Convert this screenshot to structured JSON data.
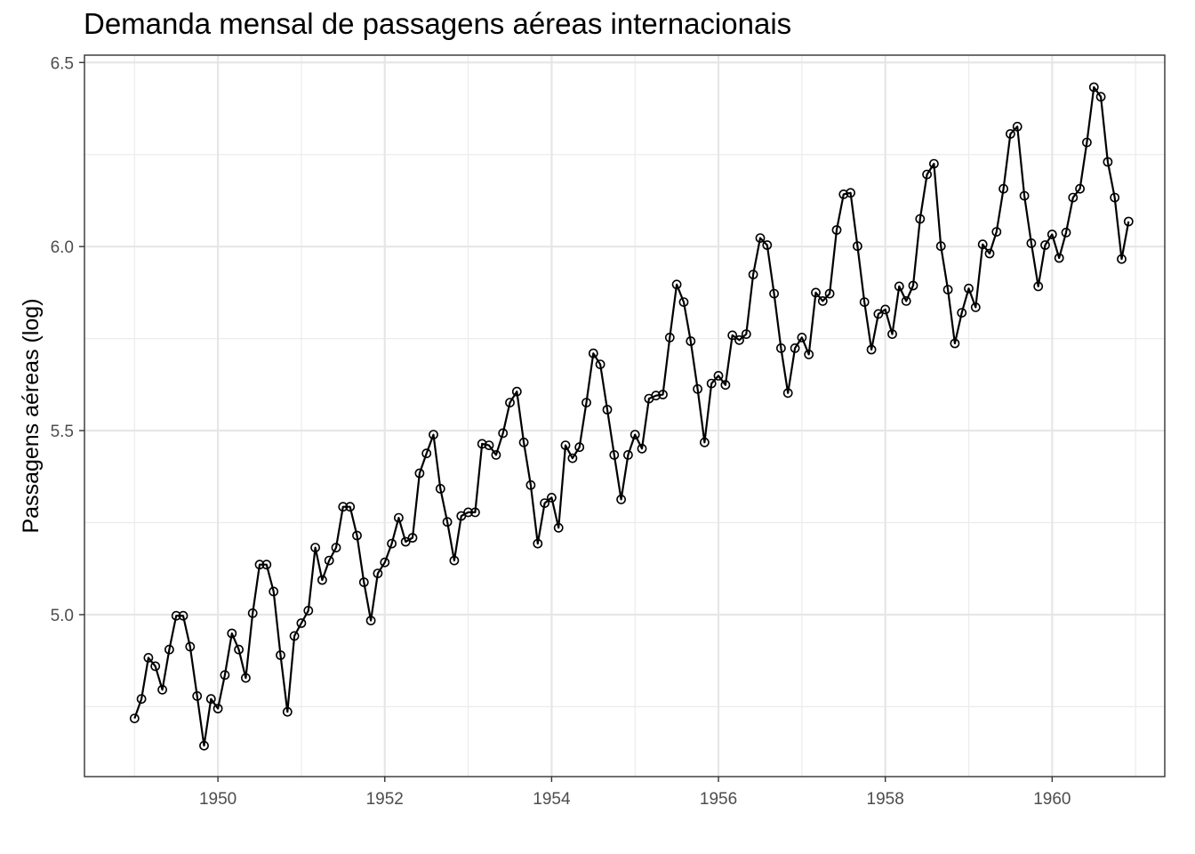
{
  "chart_data": {
    "type": "line",
    "title": "Demanda mensal de passagens aéreas internacionais",
    "xlabel": "",
    "ylabel": "Passagens aéreas (log)",
    "x_start": 1949.0,
    "x_step": 0.0833333,
    "xlim": [
      1948.4,
      1961.35
    ],
    "ylim": [
      4.56,
      6.52
    ],
    "x_ticks": [
      1950,
      1952,
      1954,
      1956,
      1958,
      1960
    ],
    "x_tick_labels": [
      "1950",
      "1952",
      "1954",
      "1956",
      "1958",
      "1960"
    ],
    "y_ticks": [
      5.0,
      5.5,
      6.0,
      6.5
    ],
    "y_tick_labels": [
      "5.0",
      "5.5",
      "6.0",
      "6.5"
    ],
    "grid": true,
    "legend": "none",
    "line_color": "#000000",
    "series": [
      {
        "values": [
          4.718,
          4.771,
          4.883,
          4.86,
          4.796,
          4.905,
          4.997,
          4.997,
          4.913,
          4.779,
          4.644,
          4.771,
          4.745,
          4.836,
          4.949,
          4.905,
          4.828,
          5.004,
          5.136,
          5.136,
          5.063,
          4.89,
          4.736,
          4.942,
          4.977,
          5.011,
          5.182,
          5.094,
          5.147,
          5.182,
          5.293,
          5.293,
          5.215,
          5.088,
          4.984,
          5.112,
          5.142,
          5.193,
          5.263,
          5.198,
          5.209,
          5.384,
          5.438,
          5.489,
          5.342,
          5.252,
          5.147,
          5.268,
          5.278,
          5.278,
          5.464,
          5.46,
          5.434,
          5.493,
          5.576,
          5.606,
          5.468,
          5.352,
          5.193,
          5.303,
          5.318,
          5.236,
          5.46,
          5.425,
          5.455,
          5.576,
          5.71,
          5.68,
          5.557,
          5.434,
          5.313,
          5.434,
          5.489,
          5.451,
          5.587,
          5.595,
          5.598,
          5.753,
          5.897,
          5.849,
          5.743,
          5.613,
          5.468,
          5.628,
          5.649,
          5.624,
          5.759,
          5.746,
          5.762,
          5.924,
          6.023,
          6.004,
          5.872,
          5.724,
          5.602,
          5.724,
          5.753,
          5.707,
          5.875,
          5.852,
          5.872,
          6.045,
          6.142,
          6.146,
          6.001,
          5.849,
          5.72,
          5.817,
          5.829,
          5.762,
          5.892,
          5.852,
          5.894,
          6.075,
          6.196,
          6.225,
          6.001,
          5.883,
          5.737,
          5.82,
          5.886,
          5.835,
          6.006,
          5.981,
          6.04,
          6.157,
          6.306,
          6.326,
          6.138,
          6.009,
          5.892,
          6.004,
          6.033,
          5.969,
          6.038,
          6.133,
          6.157,
          6.283,
          6.433,
          6.407,
          6.23,
          6.133,
          5.966,
          6.068
        ]
      }
    ]
  }
}
